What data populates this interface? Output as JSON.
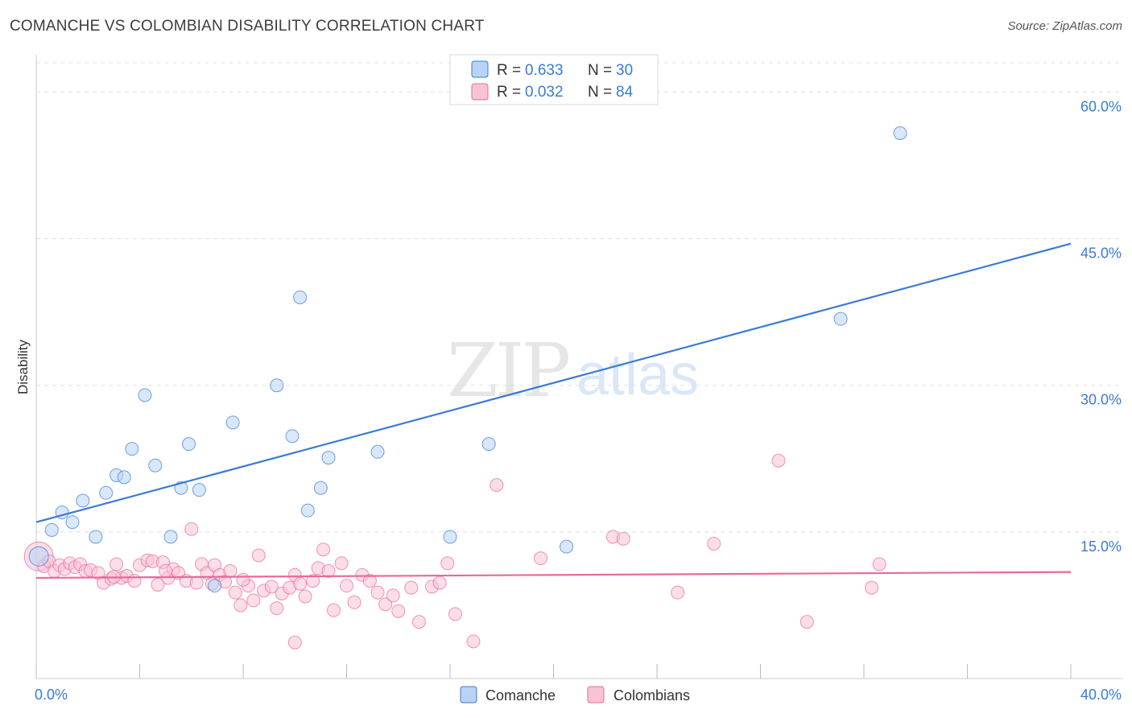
{
  "title": "COMANCHE VS COLOMBIAN DISABILITY CORRELATION CHART",
  "source": "Source: ZipAtlas.com",
  "watermark": {
    "zip": "ZIP",
    "atlas": "atlas"
  },
  "colors": {
    "comanche": "#3a7bd5",
    "comanche_fill": "#b8d3f4",
    "colombians": "#e8699a",
    "colombians_fill": "#f7c3d5",
    "grid": "#e0e0e0",
    "axis_label": "#3a7bd5"
  },
  "legend": {
    "r_label": "R =",
    "n_label": "N =",
    "series": [
      {
        "r": "0.633",
        "n": "30"
      },
      {
        "r": "0.032",
        "n": "84"
      }
    ]
  },
  "chart_data": {
    "type": "scatter",
    "title": "COMANCHE VS COLOMBIAN DISABILITY CORRELATION CHART",
    "xlabel": "",
    "ylabel": "Disability",
    "xlim": [
      0,
      40
    ],
    "ylim": [
      0,
      63
    ],
    "x_tick_labels": [
      "0.0%",
      "40.0%"
    ],
    "y_ticks": [
      15,
      30,
      45,
      60
    ],
    "y_tick_labels": [
      "15.0%",
      "30.0%",
      "45.0%",
      "60.0%"
    ],
    "grid": true,
    "legend_position": "top-center",
    "series": [
      {
        "name": "Comanche",
        "r": 0.633,
        "n": 30,
        "trend": {
          "x": [
            0,
            40
          ],
          "y": [
            16.0,
            44.5
          ]
        },
        "points": [
          {
            "x": 0.1,
            "y": 12.5
          },
          {
            "x": 0.6,
            "y": 15.2
          },
          {
            "x": 1.0,
            "y": 17.0
          },
          {
            "x": 1.4,
            "y": 16.0
          },
          {
            "x": 1.8,
            "y": 18.2
          },
          {
            "x": 2.3,
            "y": 14.5
          },
          {
            "x": 2.7,
            "y": 19.0
          },
          {
            "x": 3.1,
            "y": 20.8
          },
          {
            "x": 3.4,
            "y": 20.6
          },
          {
            "x": 3.7,
            "y": 23.5
          },
          {
            "x": 4.2,
            "y": 29.0
          },
          {
            "x": 4.6,
            "y": 21.8
          },
          {
            "x": 5.2,
            "y": 14.5
          },
          {
            "x": 5.6,
            "y": 19.5
          },
          {
            "x": 5.9,
            "y": 24.0
          },
          {
            "x": 6.3,
            "y": 19.3
          },
          {
            "x": 6.9,
            "y": 9.5
          },
          {
            "x": 7.6,
            "y": 26.2
          },
          {
            "x": 9.3,
            "y": 30.0
          },
          {
            "x": 9.9,
            "y": 24.8
          },
          {
            "x": 10.2,
            "y": 39.0
          },
          {
            "x": 10.5,
            "y": 17.2
          },
          {
            "x": 11.0,
            "y": 19.5
          },
          {
            "x": 11.3,
            "y": 22.6
          },
          {
            "x": 13.2,
            "y": 23.2
          },
          {
            "x": 16.0,
            "y": 14.5
          },
          {
            "x": 17.5,
            "y": 24.0
          },
          {
            "x": 20.5,
            "y": 13.5
          },
          {
            "x": 31.1,
            "y": 36.8
          },
          {
            "x": 33.4,
            "y": 55.8
          }
        ]
      },
      {
        "name": "Colombians",
        "r": 0.032,
        "n": 84,
        "trend": {
          "x": [
            0,
            40
          ],
          "y": [
            10.3,
            10.9
          ]
        },
        "points": [
          {
            "x": 0.1,
            "y": 12.5
          },
          {
            "x": 0.3,
            "y": 11.5
          },
          {
            "x": 0.5,
            "y": 12.0
          },
          {
            "x": 0.7,
            "y": 11.0
          },
          {
            "x": 0.9,
            "y": 11.6
          },
          {
            "x": 1.1,
            "y": 11.2
          },
          {
            "x": 1.3,
            "y": 11.8
          },
          {
            "x": 1.5,
            "y": 11.4
          },
          {
            "x": 1.7,
            "y": 11.7
          },
          {
            "x": 1.9,
            "y": 11.0
          },
          {
            "x": 2.1,
            "y": 11.1
          },
          {
            "x": 2.4,
            "y": 10.8
          },
          {
            "x": 2.6,
            "y": 9.8
          },
          {
            "x": 2.9,
            "y": 10.2
          },
          {
            "x": 3.1,
            "y": 11.7
          },
          {
            "x": 3.3,
            "y": 10.3
          },
          {
            "x": 3.5,
            "y": 10.5
          },
          {
            "x": 3.8,
            "y": 10.0
          },
          {
            "x": 4.0,
            "y": 11.6
          },
          {
            "x": 4.3,
            "y": 12.1
          },
          {
            "x": 4.5,
            "y": 12.0
          },
          {
            "x": 4.7,
            "y": 9.6
          },
          {
            "x": 4.9,
            "y": 11.9
          },
          {
            "x": 5.1,
            "y": 10.3
          },
          {
            "x": 5.3,
            "y": 11.2
          },
          {
            "x": 5.5,
            "y": 10.8
          },
          {
            "x": 5.8,
            "y": 10.0
          },
          {
            "x": 6.0,
            "y": 15.3
          },
          {
            "x": 6.2,
            "y": 9.8
          },
          {
            "x": 6.4,
            "y": 11.7
          },
          {
            "x": 6.6,
            "y": 10.8
          },
          {
            "x": 6.9,
            "y": 11.6
          },
          {
            "x": 7.1,
            "y": 10.6
          },
          {
            "x": 7.3,
            "y": 9.9
          },
          {
            "x": 7.5,
            "y": 11.0
          },
          {
            "x": 7.7,
            "y": 8.8
          },
          {
            "x": 7.9,
            "y": 7.5
          },
          {
            "x": 8.2,
            "y": 9.5
          },
          {
            "x": 8.4,
            "y": 8.0
          },
          {
            "x": 8.6,
            "y": 12.6
          },
          {
            "x": 8.8,
            "y": 9.0
          },
          {
            "x": 9.1,
            "y": 9.4
          },
          {
            "x": 9.3,
            "y": 7.2
          },
          {
            "x": 9.5,
            "y": 8.7
          },
          {
            "x": 9.8,
            "y": 9.3
          },
          {
            "x": 10.0,
            "y": 10.6
          },
          {
            "x": 10.2,
            "y": 9.7
          },
          {
            "x": 10.4,
            "y": 8.4
          },
          {
            "x": 10.7,
            "y": 10.0
          },
          {
            "x": 10.9,
            "y": 11.3
          },
          {
            "x": 11.1,
            "y": 13.2
          },
          {
            "x": 11.3,
            "y": 11.0
          },
          {
            "x": 11.5,
            "y": 7.0
          },
          {
            "x": 11.8,
            "y": 11.8
          },
          {
            "x": 12.0,
            "y": 9.5
          },
          {
            "x": 12.3,
            "y": 7.8
          },
          {
            "x": 12.6,
            "y": 10.6
          },
          {
            "x": 12.9,
            "y": 10.0
          },
          {
            "x": 13.2,
            "y": 8.8
          },
          {
            "x": 13.5,
            "y": 7.6
          },
          {
            "x": 13.8,
            "y": 8.5
          },
          {
            "x": 14.5,
            "y": 9.3
          },
          {
            "x": 14.8,
            "y": 5.8
          },
          {
            "x": 15.3,
            "y": 9.4
          },
          {
            "x": 15.6,
            "y": 9.8
          },
          {
            "x": 15.9,
            "y": 11.8
          },
          {
            "x": 16.2,
            "y": 6.6
          },
          {
            "x": 16.9,
            "y": 3.8
          },
          {
            "x": 17.8,
            "y": 19.8
          },
          {
            "x": 19.5,
            "y": 12.3
          },
          {
            "x": 22.3,
            "y": 14.5
          },
          {
            "x": 22.7,
            "y": 14.3
          },
          {
            "x": 24.8,
            "y": 8.8
          },
          {
            "x": 26.2,
            "y": 13.8
          },
          {
            "x": 28.7,
            "y": 22.3
          },
          {
            "x": 29.8,
            "y": 5.8
          },
          {
            "x": 32.3,
            "y": 9.3
          },
          {
            "x": 32.6,
            "y": 11.7
          },
          {
            "x": 6.8,
            "y": 9.7
          },
          {
            "x": 10.0,
            "y": 3.7
          },
          {
            "x": 5.0,
            "y": 11.0
          },
          {
            "x": 14.0,
            "y": 6.9
          },
          {
            "x": 3.0,
            "y": 10.4
          },
          {
            "x": 8.0,
            "y": 10.1
          }
        ]
      }
    ]
  },
  "bottom_legend": [
    {
      "label": "Comanche"
    },
    {
      "label": "Colombians"
    }
  ]
}
